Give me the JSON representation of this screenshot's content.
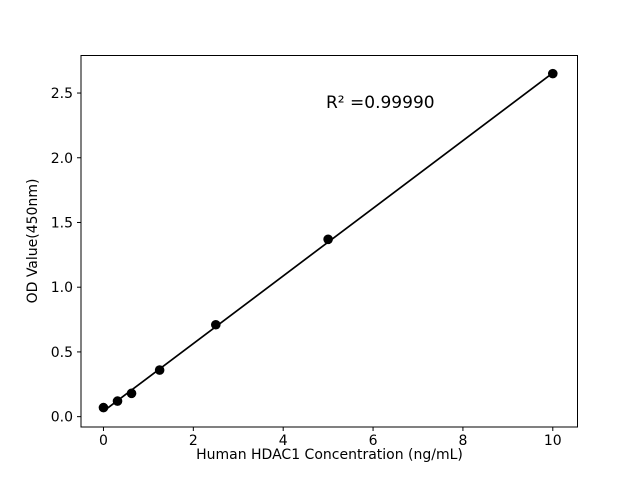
{
  "chart_data": {
    "type": "scatter",
    "title": "",
    "xlabel": "Human HDAC1 Concentration (ng/mL)",
    "ylabel": "OD Value(450nm)",
    "annotation": {
      "text": "R² =0.99990",
      "r_squared": 0.9999
    },
    "x": [
      0,
      0.3125,
      0.625,
      1.25,
      2.5,
      5,
      10
    ],
    "y": [
      0.07,
      0.12,
      0.18,
      0.36,
      0.71,
      1.37,
      2.65
    ],
    "fit_line": {
      "slope": 0.2613,
      "intercept": 0.042,
      "x_start": 0,
      "x_end": 10
    },
    "xticks": {
      "values": [
        0,
        2,
        4,
        6,
        8,
        10
      ],
      "labels": [
        "0",
        "2",
        "4",
        "6",
        "8",
        "10"
      ]
    },
    "yticks": {
      "values": [
        0,
        0.5,
        1.0,
        1.5,
        2.0,
        2.5
      ],
      "labels": [
        "0.0",
        "0.5",
        "1.0",
        "1.5",
        "2.0",
        "2.5"
      ]
    },
    "xlim": [
      -0.5,
      10.55
    ],
    "ylim": [
      -0.08,
      2.79
    ],
    "grid": false,
    "legend": null,
    "marker_color": "#000000",
    "line_color": "#000000",
    "axis_color": "#000000",
    "background": "#ffffff"
  }
}
